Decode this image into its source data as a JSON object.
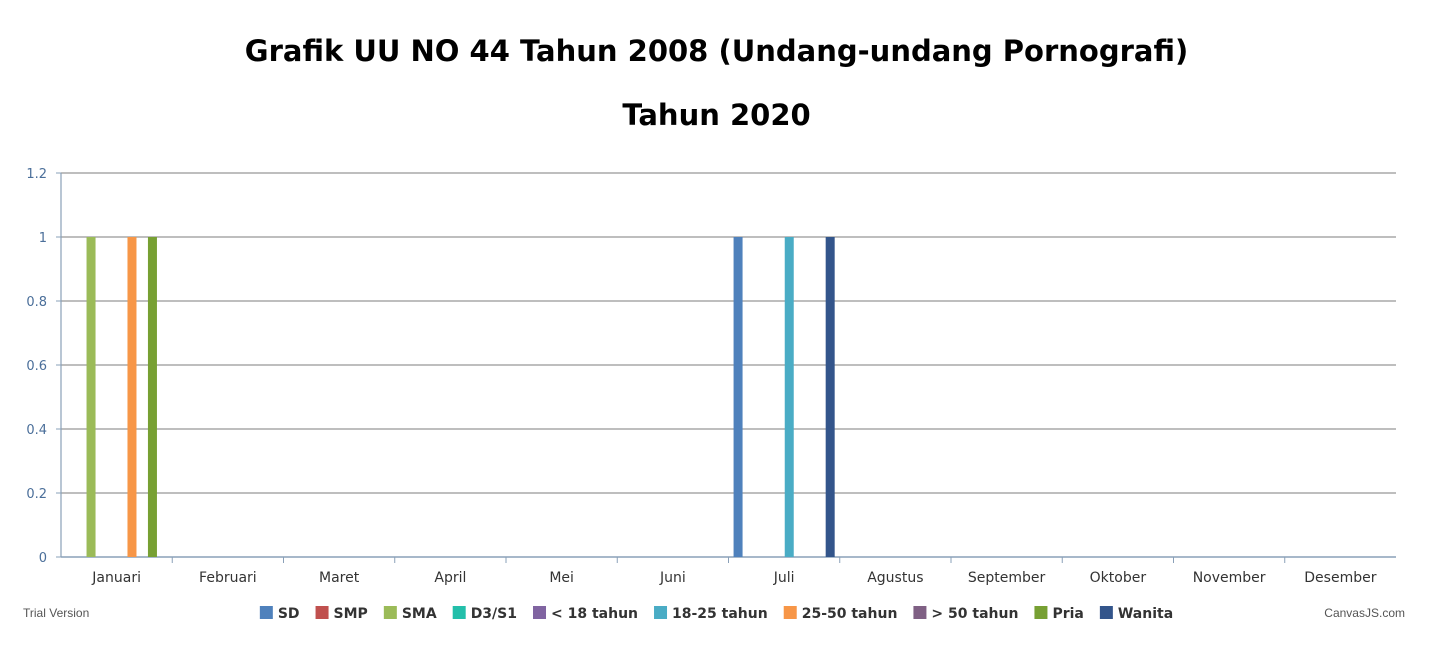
{
  "chart_data": {
    "type": "bar",
    "title": "Grafik UU NO 44 Tahun 2008 (Undang-undang Pornografi)",
    "subtitle": "Tahun 2020",
    "categories": [
      "Januari",
      "Februari",
      "Maret",
      "April",
      "Mei",
      "Juni",
      "Juli",
      "Agustus",
      "September",
      "Oktober",
      "November",
      "Desember"
    ],
    "series": [
      {
        "name": "SD",
        "color": "#4f81bc",
        "values": [
          0,
          0,
          0,
          0,
          0,
          0,
          1,
          0,
          0,
          0,
          0,
          0
        ]
      },
      {
        "name": "SMP",
        "color": "#c0504e",
        "values": [
          0,
          0,
          0,
          0,
          0,
          0,
          0,
          0,
          0,
          0,
          0,
          0
        ]
      },
      {
        "name": "SMA",
        "color": "#9bbb58",
        "values": [
          1,
          0,
          0,
          0,
          0,
          0,
          0,
          0,
          0,
          0,
          0,
          0
        ]
      },
      {
        "name": "D3/S1",
        "color": "#23bfaa",
        "values": [
          0,
          0,
          0,
          0,
          0,
          0,
          0,
          0,
          0,
          0,
          0,
          0
        ]
      },
      {
        "name": "< 18 tahun",
        "color": "#8064a1",
        "values": [
          0,
          0,
          0,
          0,
          0,
          0,
          0,
          0,
          0,
          0,
          0,
          0
        ]
      },
      {
        "name": "18-25 tahun",
        "color": "#4aacc5",
        "values": [
          0,
          0,
          0,
          0,
          0,
          0,
          1,
          0,
          0,
          0,
          0,
          0
        ]
      },
      {
        "name": "25-50 tahun",
        "color": "#f79647",
        "values": [
          1,
          0,
          0,
          0,
          0,
          0,
          0,
          0,
          0,
          0,
          0,
          0
        ]
      },
      {
        "name": "> 50 tahun",
        "color": "#7f6084",
        "values": [
          0,
          0,
          0,
          0,
          0,
          0,
          0,
          0,
          0,
          0,
          0,
          0
        ]
      },
      {
        "name": "Pria",
        "color": "#77a033",
        "values": [
          1,
          0,
          0,
          0,
          0,
          0,
          0,
          0,
          0,
          0,
          0,
          0
        ]
      },
      {
        "name": "Wanita",
        "color": "#33558b",
        "values": [
          0,
          0,
          0,
          0,
          0,
          0,
          1,
          0,
          0,
          0,
          0,
          0
        ]
      }
    ],
    "ylim": [
      0,
      1.2
    ],
    "yticks": [
      "0",
      "0.2",
      "0.4",
      "0.6",
      "0.8",
      "1",
      "1.2"
    ],
    "grid": true,
    "legend_position": "bottom"
  },
  "footer": {
    "trial_text": "Trial Version",
    "credit_text": "CanvasJS.com"
  }
}
